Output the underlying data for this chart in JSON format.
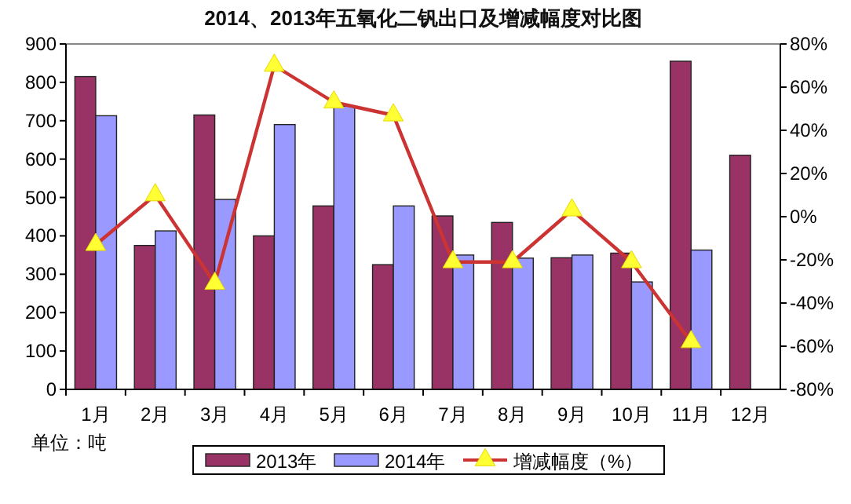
{
  "chart_data": {
    "type": "bar",
    "title": "2014、2013年五氧化二钒出口及增减幅度对比图",
    "categories": [
      "1月",
      "2月",
      "3月",
      "4月",
      "5月",
      "6月",
      "7月",
      "8月",
      "9月",
      "10月",
      "11月",
      "12月"
    ],
    "series": [
      {
        "name": "2013年",
        "color": "#993366",
        "values": [
          815,
          375,
          715,
          400,
          478,
          325,
          452,
          435,
          343,
          355,
          855,
          610
        ]
      },
      {
        "name": "2014年",
        "color": "#9999ff",
        "values": [
          713,
          413,
          495,
          690,
          738,
          478,
          350,
          342,
          350,
          280,
          363,
          null
        ]
      },
      {
        "name": "增减幅度（%）",
        "type": "line",
        "axis": "y2",
        "color": "#cc3333",
        "marker": "triangle",
        "values": [
          -13,
          10,
          -31,
          70,
          53,
          47,
          -21,
          -21,
          3,
          -21,
          -58,
          null
        ]
      }
    ],
    "ylim": [
      0,
      900
    ],
    "yticks": [
      0,
      100,
      200,
      300,
      400,
      500,
      600,
      700,
      800,
      900
    ],
    "y2lim": [
      -80,
      80
    ],
    "y2ticks": [
      {
        "value": -80,
        "label": "-80%"
      },
      {
        "value": -60,
        "label": "-60%"
      },
      {
        "value": -40,
        "label": "-40%"
      },
      {
        "value": -20,
        "label": "-20%"
      },
      {
        "value": 0,
        "label": "0%"
      },
      {
        "value": 20,
        "label": "20%"
      },
      {
        "value": 40,
        "label": "40%"
      },
      {
        "value": 60,
        "label": "60%"
      },
      {
        "value": 80,
        "label": "80%"
      }
    ],
    "annotations": [
      "单位：吨"
    ],
    "legend": "bottom",
    "grid": false
  }
}
